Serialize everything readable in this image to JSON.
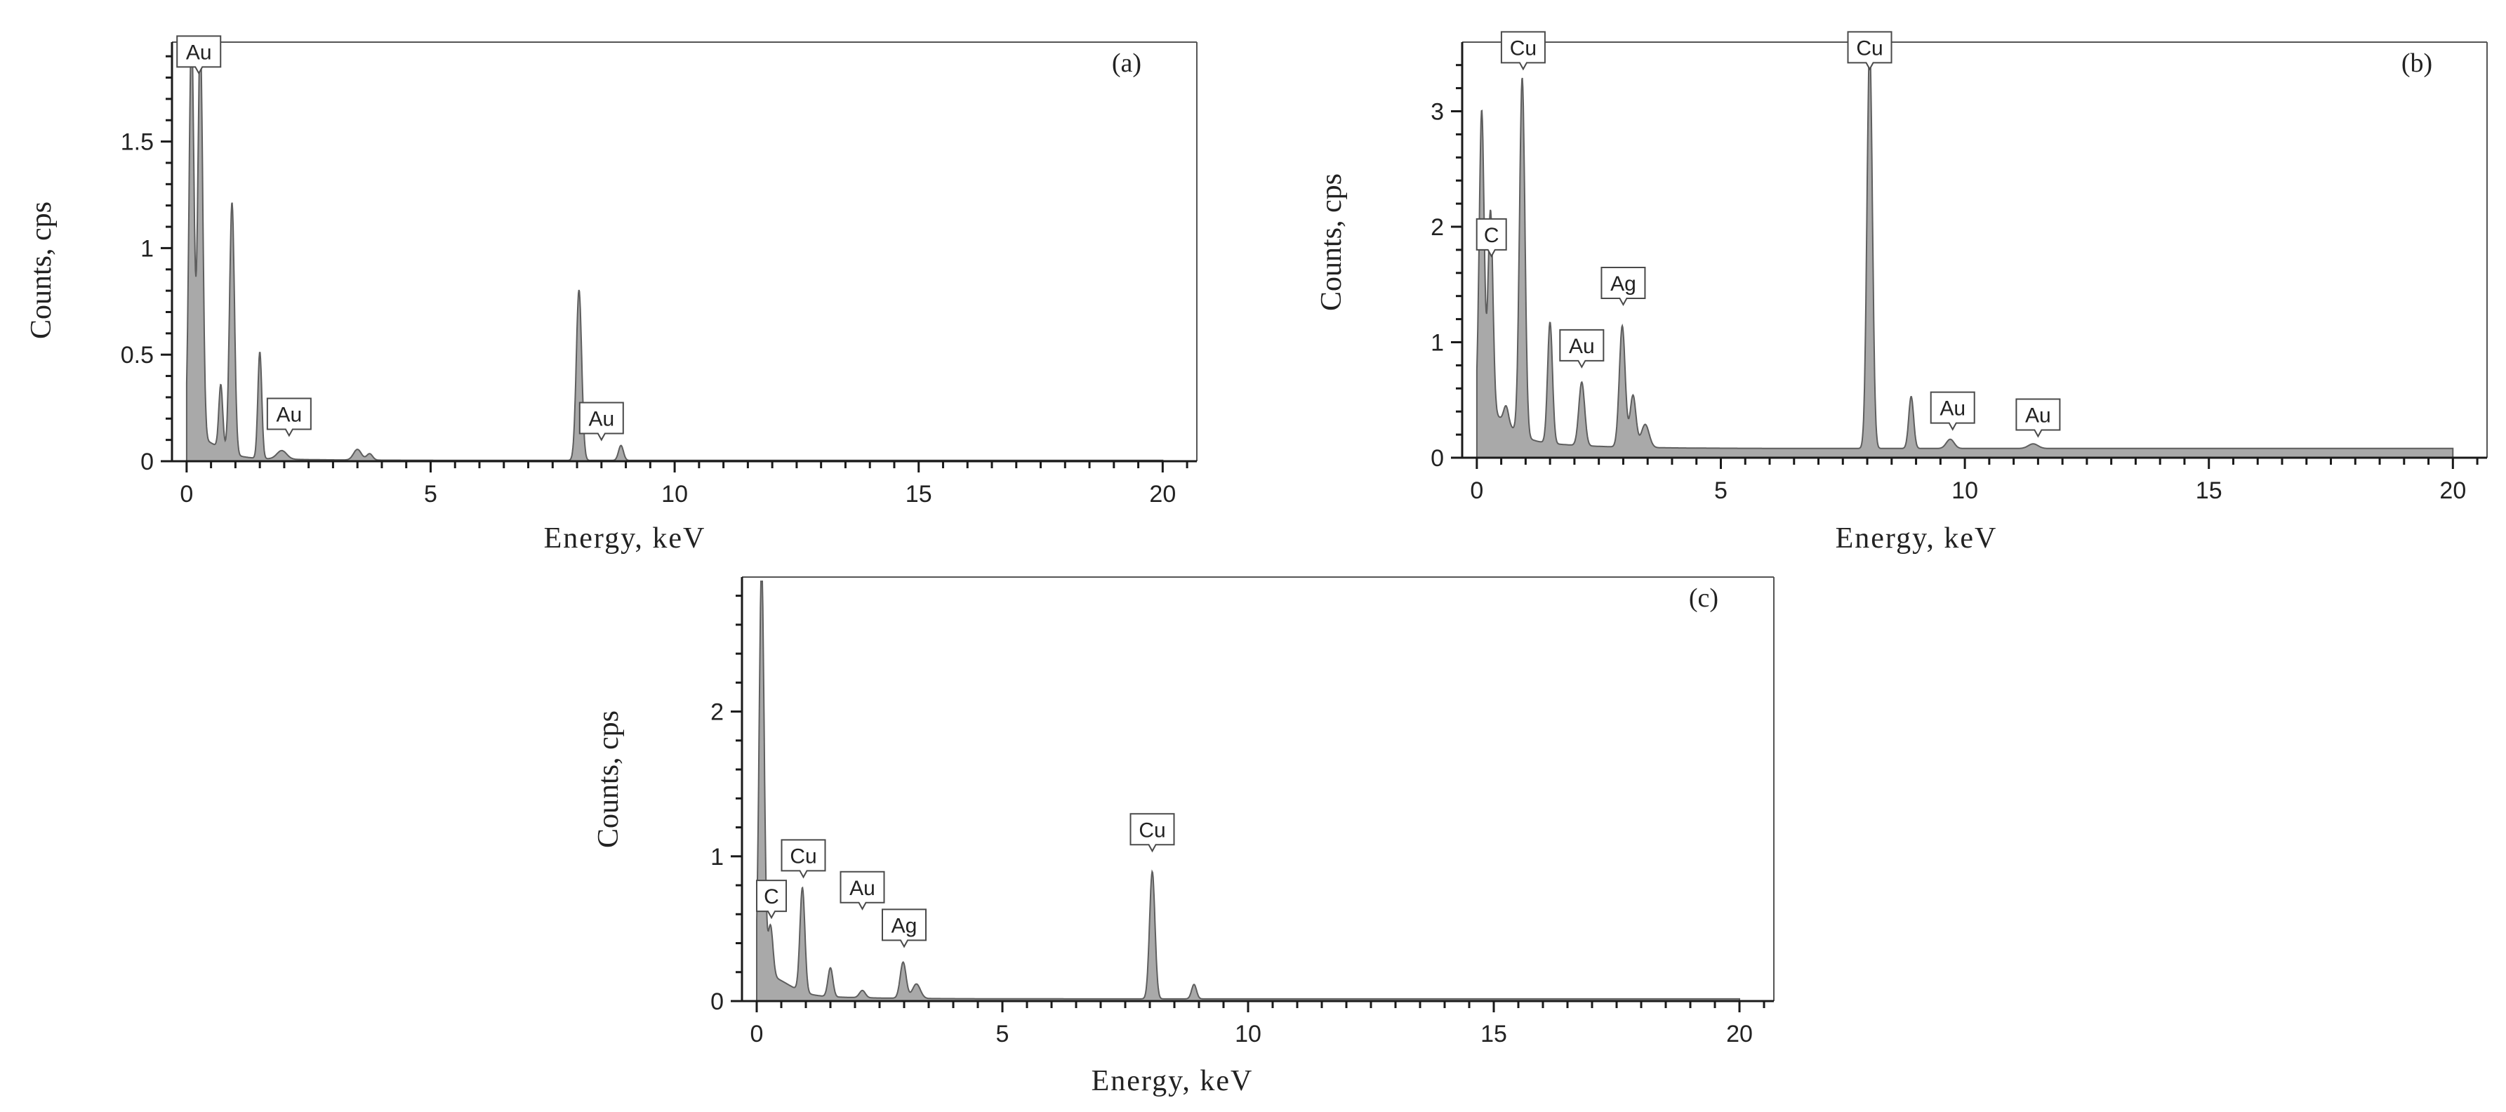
{
  "colors": {
    "fill": "#a9a9a9",
    "stroke": "#5e5e5e",
    "axis": "#1a1a1a",
    "frame": "#555555",
    "label_border": "#4a4a4a",
    "background": "#ffffff"
  },
  "chart_data": [
    {
      "type": "area",
      "panel_label": "(a)",
      "xlabel": "Energy, keV",
      "ylabel": "Counts, cps",
      "xlim": [
        -0.3,
        20.7
      ],
      "ylim": [
        0,
        1.95
      ],
      "xticks": [
        0,
        5,
        10,
        15,
        20
      ],
      "xtick_labels": [
        "0",
        "5",
        "10",
        "15",
        "20"
      ],
      "yticks": [
        0,
        0.5,
        1,
        1.5
      ],
      "ytick_labels": [
        "0",
        "0.5",
        "1",
        "1.5"
      ],
      "baseline": {
        "y0": 0.03,
        "decay": 0.08,
        "tail": 0.004
      },
      "peaks": [
        {
          "x": 0.1,
          "h": 1.92,
          "w": 0.05
        },
        {
          "x": 0.28,
          "h": 1.9,
          "w": 0.05
        },
        {
          "x": 0.7,
          "h": 0.3,
          "w": 0.04
        },
        {
          "x": 0.93,
          "h": 1.18,
          "w": 0.05
        },
        {
          "x": 1.5,
          "h": 0.5,
          "w": 0.04
        },
        {
          "x": 1.95,
          "h": 0.04,
          "w": 0.1
        },
        {
          "x": 3.5,
          "h": 0.05,
          "w": 0.08
        },
        {
          "x": 3.75,
          "h": 0.03,
          "w": 0.06
        },
        {
          "x": 8.04,
          "h": 0.8,
          "w": 0.055
        },
        {
          "x": 8.9,
          "h": 0.07,
          "w": 0.05
        }
      ],
      "element_labels": [
        {
          "text": "Au",
          "x": 0.25,
          "y": 1.85
        },
        {
          "text": "Au",
          "x": 2.1,
          "y": 0.15
        },
        {
          "text": "Au",
          "x": 8.5,
          "y": 0.13
        }
      ]
    },
    {
      "type": "area",
      "panel_label": "(b)",
      "xlabel": "Energy, keV",
      "ylabel": "Counts, cps",
      "xlim": [
        -0.3,
        20.7
      ],
      "ylim": [
        0,
        3.55
      ],
      "xticks": [
        0,
        5,
        10,
        15,
        20
      ],
      "xtick_labels": [
        "0",
        "5",
        "10",
        "15",
        "20"
      ],
      "yticks": [
        0,
        1,
        2,
        3
      ],
      "ytick_labels": [
        "0",
        "1",
        "2",
        "3"
      ],
      "baseline": {
        "y0": 0.15,
        "decay": 0.2,
        "tail": 0.08
      },
      "peaks": [
        {
          "x": 0.1,
          "h": 2.6,
          "w": 0.05
        },
        {
          "x": 0.28,
          "h": 1.75,
          "w": 0.05
        },
        {
          "x": 0.6,
          "h": 0.15,
          "w": 0.05
        },
        {
          "x": 0.93,
          "h": 3.1,
          "w": 0.055
        },
        {
          "x": 1.5,
          "h": 1.05,
          "w": 0.05
        },
        {
          "x": 2.15,
          "h": 0.55,
          "w": 0.06
        },
        {
          "x": 2.98,
          "h": 1.05,
          "w": 0.06
        },
        {
          "x": 3.2,
          "h": 0.45,
          "w": 0.06
        },
        {
          "x": 3.45,
          "h": 0.2,
          "w": 0.08
        },
        {
          "x": 8.05,
          "h": 3.5,
          "w": 0.055
        },
        {
          "x": 8.9,
          "h": 0.45,
          "w": 0.05
        },
        {
          "x": 9.7,
          "h": 0.08,
          "w": 0.08
        },
        {
          "x": 11.4,
          "h": 0.04,
          "w": 0.1
        }
      ],
      "element_labels": [
        {
          "text": "Cu",
          "x": 0.95,
          "y": 3.42
        },
        {
          "text": "Cu",
          "x": 8.05,
          "y": 3.42
        },
        {
          "text": "C",
          "x": 0.3,
          "y": 1.8
        },
        {
          "text": "Ag",
          "x": 3.0,
          "y": 1.38
        },
        {
          "text": "Au",
          "x": 2.15,
          "y": 0.84
        },
        {
          "text": "Au",
          "x": 9.75,
          "y": 0.3
        },
        {
          "text": "Au",
          "x": 11.5,
          "y": 0.24
        }
      ]
    },
    {
      "type": "area",
      "panel_label": "(c)",
      "xlabel": "Energy, keV",
      "ylabel": "Counts, cps",
      "xlim": [
        -0.3,
        20.7
      ],
      "ylim": [
        0,
        2.9
      ],
      "xticks": [
        0,
        5,
        10,
        15,
        20
      ],
      "xtick_labels": [
        "0",
        "5",
        "10",
        "15",
        "20"
      ],
      "yticks": [
        0,
        1,
        2
      ],
      "ytick_labels": [
        "0",
        "1",
        "2"
      ],
      "baseline": {
        "y0": 0.05,
        "decay": 0.12,
        "tail": 0.015
      },
      "peaks": [
        {
          "x": 0.1,
          "h": 2.85,
          "w": 0.05
        },
        {
          "x": 0.28,
          "h": 0.35,
          "w": 0.05
        },
        {
          "x": 0.93,
          "h": 0.72,
          "w": 0.05
        },
        {
          "x": 1.5,
          "h": 0.2,
          "w": 0.05
        },
        {
          "x": 2.15,
          "h": 0.05,
          "w": 0.06
        },
        {
          "x": 2.98,
          "h": 0.25,
          "w": 0.06
        },
        {
          "x": 3.25,
          "h": 0.1,
          "w": 0.08
        },
        {
          "x": 8.05,
          "h": 0.88,
          "w": 0.055
        },
        {
          "x": 8.9,
          "h": 0.1,
          "w": 0.05
        }
      ],
      "element_labels": [
        {
          "text": "C",
          "x": 0.3,
          "y": 0.62
        },
        {
          "text": "Cu",
          "x": 0.95,
          "y": 0.9
        },
        {
          "text": "Au",
          "x": 2.15,
          "y": 0.68
        },
        {
          "text": "Ag",
          "x": 3.0,
          "y": 0.42
        },
        {
          "text": "Cu",
          "x": 8.05,
          "y": 1.08
        }
      ]
    }
  ]
}
